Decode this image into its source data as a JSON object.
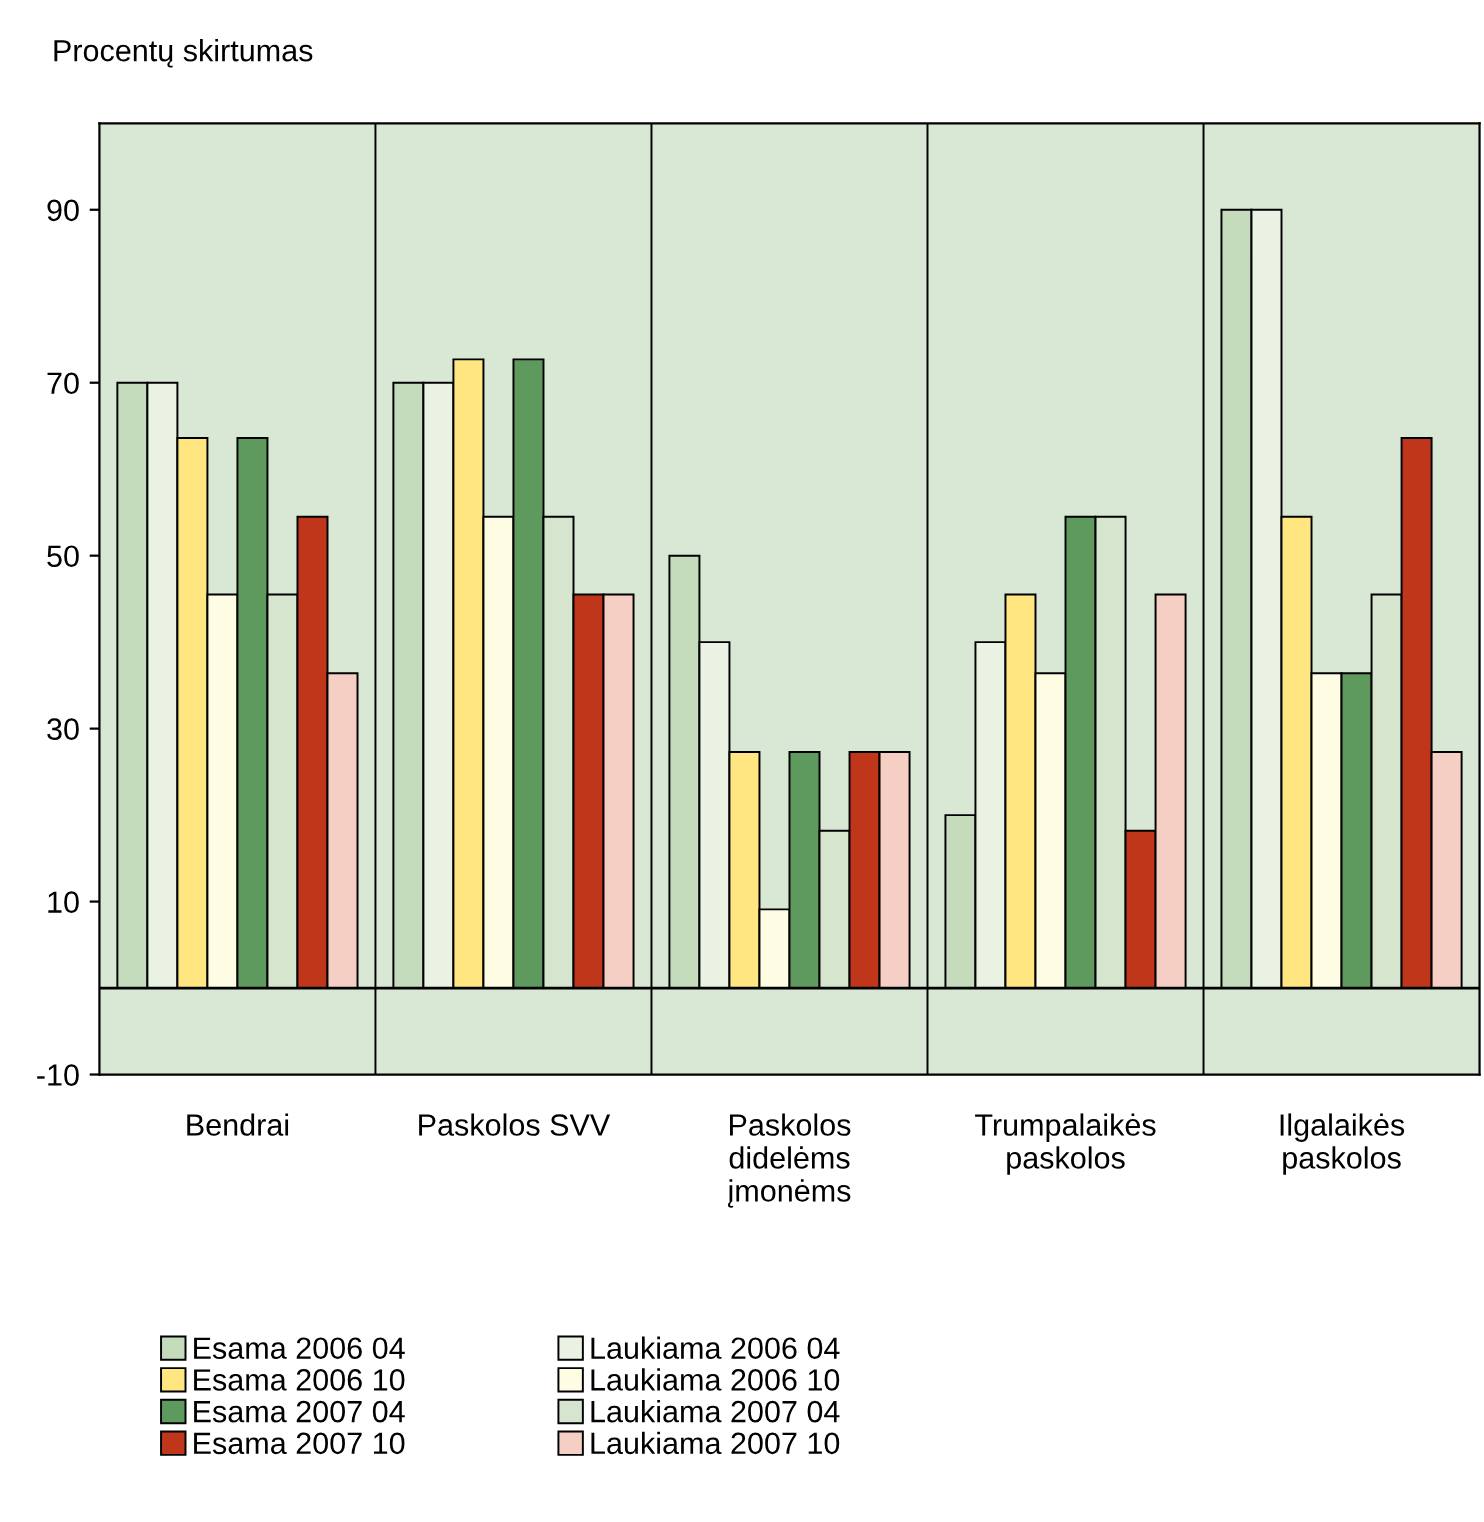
{
  "chart_data": {
    "type": "bar",
    "ylabel": "Procentų skirtumas",
    "categories": [
      "Bendrai",
      "Paskolos SVV",
      "Paskolos\ndidelėms\nįmonėms",
      "Trumpalaikės\npaskolos",
      "Ilgalaikės\npaskolos"
    ],
    "series": [
      {
        "name": "Esama 2006 04",
        "color": "#c4dcbc",
        "values": [
          70,
          70,
          50,
          20,
          90
        ]
      },
      {
        "name": "Laukiama 2006 04",
        "color": "#eaf2e4",
        "values": [
          70,
          70,
          40,
          40,
          90
        ]
      },
      {
        "name": "Esama 2006 10",
        "color": "#ffe680",
        "values": [
          63.6,
          72.7,
          27.3,
          45.5,
          54.5
        ]
      },
      {
        "name": "Laukiama 2006 10",
        "color": "#fffce4",
        "values": [
          45.5,
          54.5,
          9.1,
          36.4,
          36.4
        ]
      },
      {
        "name": "Esama 2007 04",
        "color": "#5e9a5e",
        "values": [
          63.6,
          72.7,
          27.3,
          54.5,
          36.4
        ]
      },
      {
        "name": "Laukiama 2007 04",
        "color": "#d6e6ce",
        "values": [
          45.5,
          54.5,
          18.2,
          54.5,
          45.5
        ]
      },
      {
        "name": "Esama 2007 10",
        "color": "#c0361a",
        "values": [
          54.5,
          45.5,
          27.3,
          18.2,
          63.6
        ]
      },
      {
        "name": "Laukiama 2007 10",
        "color": "#f6cfc4",
        "values": [
          36.4,
          45.5,
          27.3,
          45.5,
          27.3
        ]
      }
    ],
    "ylim": [
      -10,
      100
    ],
    "yticks": [
      -10,
      10,
      30,
      50,
      70,
      90
    ],
    "ref_lines": [
      {
        "axis": "y",
        "value": 0,
        "color": "#000000"
      }
    ],
    "grid": "x",
    "legend": "bottom"
  }
}
